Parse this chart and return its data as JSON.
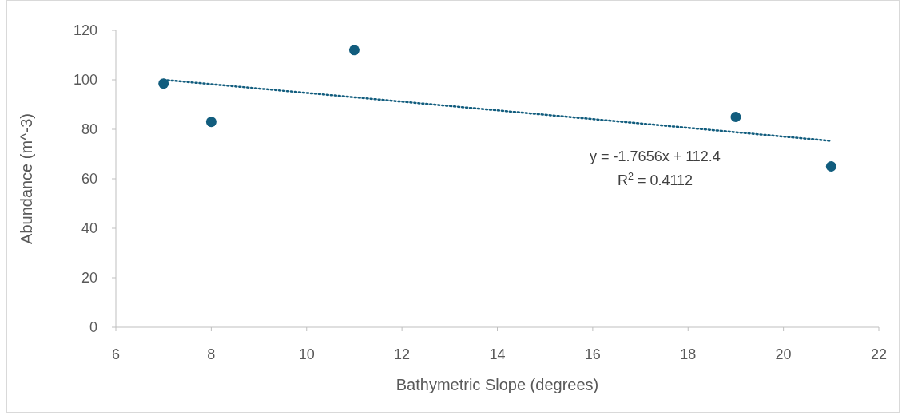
{
  "chart_data": {
    "type": "scatter",
    "xlabel": "Bathymetric Slope (degrees)",
    "ylabel": "Abundance (m^-3)",
    "xlim": [
      6,
      22
    ],
    "xticks": [
      6,
      8,
      10,
      12,
      14,
      16,
      18,
      20,
      22
    ],
    "ylim": [
      0,
      120
    ],
    "yticks": [
      0,
      20,
      40,
      60,
      80,
      100,
      120
    ],
    "marker": "circle",
    "series": [
      {
        "color": "#125d7e",
        "x": [
          7,
          8,
          11,
          19,
          21
        ],
        "values": [
          98.5,
          83,
          112,
          85,
          65
        ]
      },
      {
        "type": "line",
        "color": "#125d7e",
        "line_style": "dotted",
        "marker": "none",
        "x": [
          7,
          21
        ],
        "values": [
          100,
          75.3
        ]
      }
    ],
    "annotations": [
      "y = -1.7656x + 112.4",
      "R$^{2}$ = 0.4112"
    ]
  }
}
